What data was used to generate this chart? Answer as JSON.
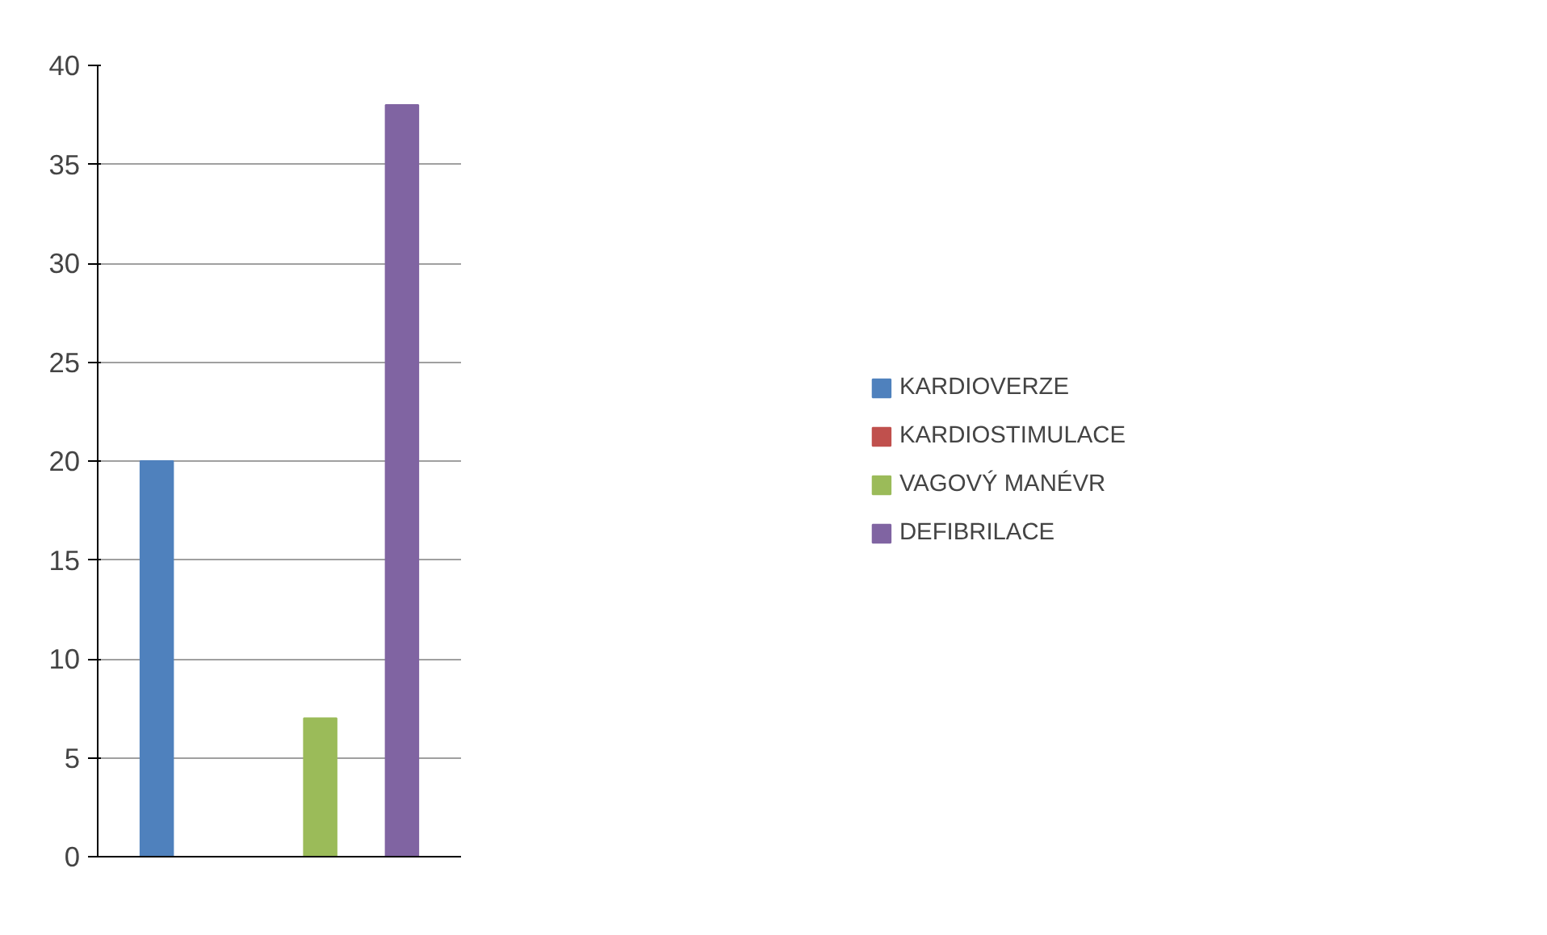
{
  "chart_data": {
    "type": "bar",
    "categories": [
      null
    ],
    "series": [
      {
        "name": "KARDIOVERZE",
        "color": "#4f81bd",
        "values": [
          20
        ]
      },
      {
        "name": "KARDIOSTIMULACE",
        "color": "#c0504d",
        "values": [
          0
        ]
      },
      {
        "name": "VAGOVÝ MANÉVR",
        "color": "#9bbb59",
        "values": [
          7
        ]
      },
      {
        "name": "DEFIBRILACE",
        "color": "#8064a2",
        "values": [
          38
        ]
      }
    ],
    "ylim": [
      0,
      40
    ],
    "yticks": [
      0,
      5,
      10,
      15,
      20,
      25,
      30,
      35,
      40
    ],
    "grid": "y",
    "legend": "right"
  }
}
